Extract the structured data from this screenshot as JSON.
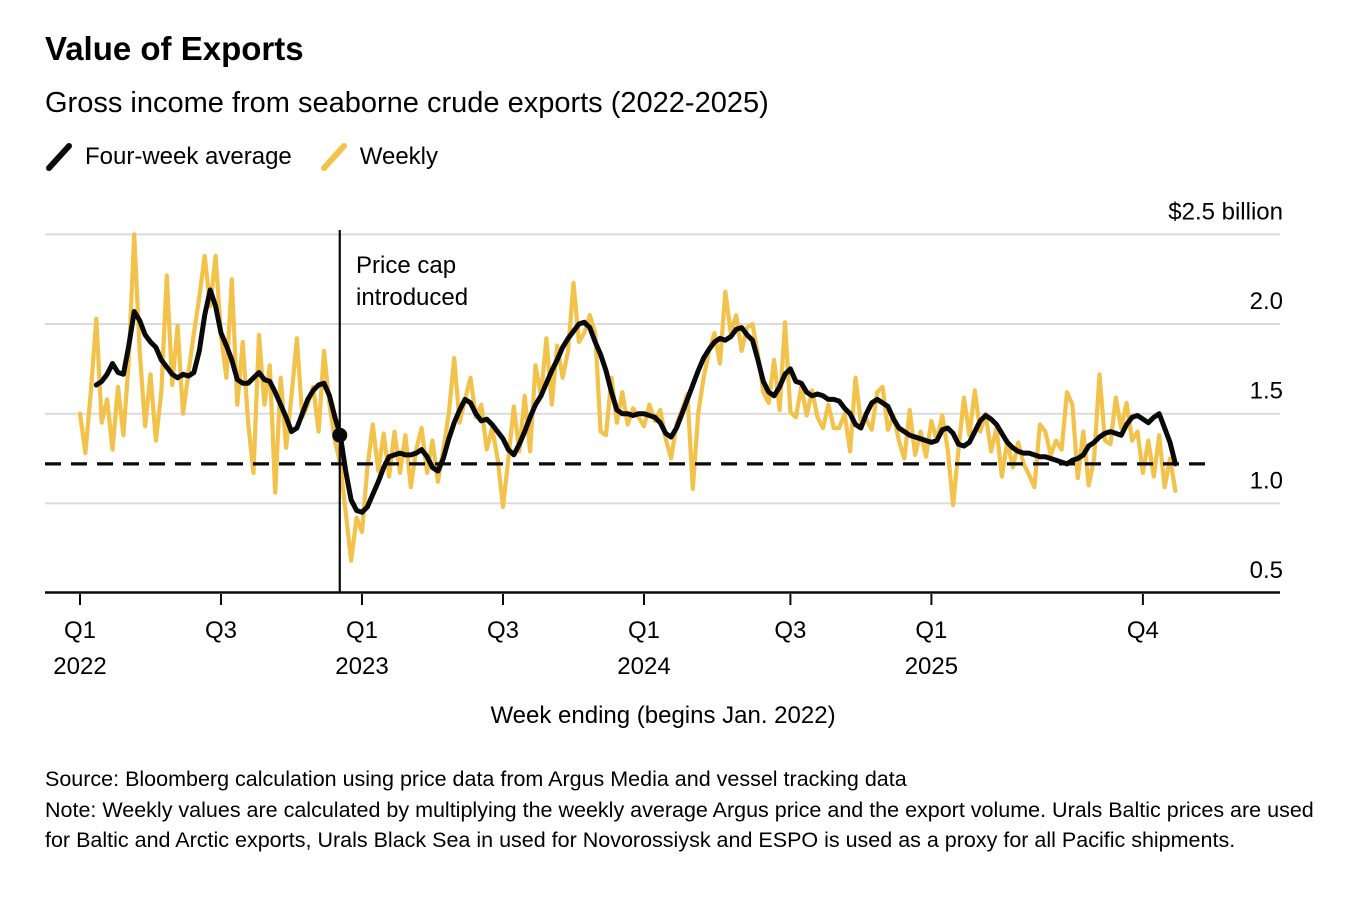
{
  "header": {
    "title": "Value of Exports",
    "subtitle": "Gross income from seaborne crude exports (2022-2025)"
  },
  "legend": [
    {
      "label": "Four-week average",
      "color": "#0a0a0a"
    },
    {
      "label": "Weekly",
      "color": "#f2c24a"
    }
  ],
  "annotation": {
    "price_cap_label": "Price cap\nintroduced"
  },
  "footer": {
    "source": "Source: Bloomberg calculation using price data from Argus Media and vessel tracking data",
    "note": "Note: Weekly values are calculated by multiplying the weekly average Argus price and the export volume. Urals Baltic prices are used for Baltic and Arctic exports, Urals Black Sea in used for Novorossiysk and ESPO is used as a proxy for all Pacific shipments."
  },
  "chart_data": {
    "type": "line",
    "title": "Value of Exports",
    "subtitle": "Gross income from seaborne crude exports (2022-2025)",
    "xlabel": "Week ending (begins Jan. 2022)",
    "ylabel": "$ billion",
    "ylim": [
      0.5,
      2.5
    ],
    "grid": "horizontal",
    "legend_position": "top-left",
    "colors": {
      "weekly": "#f2c24a",
      "four_week_average": "#0a0a0a",
      "gridline": "#dbdbdb"
    },
    "y_ticks": [
      {
        "label": "$2.5 billion",
        "value": 2.5
      },
      {
        "label": "2.0",
        "value": 2.0
      },
      {
        "label": "1.5",
        "value": 1.5
      },
      {
        "label": "1.0",
        "value": 1.0
      },
      {
        "label": "0.5",
        "value": 0.5
      }
    ],
    "x_ticks": [
      {
        "label": "Q1",
        "year": "2022",
        "week": 0
      },
      {
        "label": "Q3",
        "year": "",
        "week": 26
      },
      {
        "label": "Q1",
        "year": "2023",
        "week": 52
      },
      {
        "label": "Q3",
        "year": "",
        "week": 78
      },
      {
        "label": "Q1",
        "year": "2024",
        "week": 104
      },
      {
        "label": "Q3",
        "year": "",
        "week": 131
      },
      {
        "label": "Q1",
        "year": "2025",
        "week": 157
      },
      {
        "label": "Q4",
        "year": "",
        "week": 196
      }
    ],
    "dashed_baseline_value": 1.22,
    "price_cap": {
      "week": 47.9,
      "marker_value": 1.38,
      "label": "Price cap introduced"
    },
    "x_unit": "week index from first week of Jan. 2022",
    "series": [
      {
        "name": "Weekly",
        "color": "#f2c24a",
        "values": [
          1.5,
          1.28,
          1.62,
          2.03,
          1.45,
          1.58,
          1.3,
          1.65,
          1.38,
          1.8,
          2.5,
          1.85,
          1.43,
          1.72,
          1.35,
          1.62,
          2.27,
          1.66,
          1.99,
          1.5,
          1.73,
          1.95,
          2.15,
          2.38,
          2.1,
          2.38,
          1.94,
          1.7,
          2.25,
          1.55,
          1.9,
          1.45,
          1.17,
          1.94,
          1.55,
          1.77,
          1.06,
          1.7,
          1.31,
          1.6,
          1.92,
          1.48,
          1.55,
          1.65,
          1.4,
          1.85,
          1.55,
          1.35,
          1.22,
          0.95,
          0.68,
          0.92,
          0.84,
          1.2,
          1.44,
          1.18,
          1.39,
          1.15,
          1.4,
          1.17,
          1.38,
          1.09,
          1.3,
          1.42,
          1.17,
          1.35,
          1.12,
          1.3,
          1.5,
          1.81,
          1.45,
          1.58,
          1.7,
          1.48,
          1.55,
          1.3,
          1.42,
          1.25,
          0.98,
          1.25,
          1.54,
          1.29,
          1.6,
          1.29,
          1.77,
          1.6,
          1.92,
          1.55,
          1.88,
          1.7,
          1.85,
          2.23,
          1.9,
          1.95,
          2.05,
          1.95,
          1.4,
          1.38,
          1.7,
          1.45,
          1.62,
          1.44,
          1.53,
          1.48,
          1.43,
          1.55,
          1.46,
          1.52,
          1.36,
          1.25,
          1.44,
          1.52,
          1.61,
          1.08,
          1.5,
          1.7,
          1.85,
          1.95,
          1.78,
          2.18,
          1.95,
          2.05,
          1.85,
          1.98,
          2.0,
          1.83,
          1.62,
          1.56,
          1.8,
          1.52,
          2.01,
          1.51,
          1.48,
          1.65,
          1.49,
          1.63,
          1.48,
          1.42,
          1.55,
          1.42,
          1.42,
          1.5,
          1.29,
          1.7,
          1.45,
          1.47,
          1.41,
          1.62,
          1.65,
          1.41,
          1.49,
          1.35,
          1.25,
          1.52,
          1.27,
          1.4,
          1.26,
          1.46,
          1.35,
          1.49,
          1.3,
          0.99,
          1.3,
          1.59,
          1.38,
          1.63,
          1.4,
          1.5,
          1.29,
          1.42,
          1.15,
          1.35,
          1.2,
          1.34,
          1.22,
          1.16,
          1.09,
          1.44,
          1.4,
          1.27,
          1.35,
          1.3,
          1.62,
          1.55,
          1.14,
          1.4,
          1.1,
          1.25,
          1.72,
          1.35,
          1.33,
          1.59,
          1.42,
          1.56,
          1.35,
          1.4,
          1.17,
          1.35,
          1.15,
          1.38,
          1.09,
          1.25,
          1.07
        ]
      },
      {
        "name": "Four-week average",
        "color": "#0a0a0a",
        "values": [
          null,
          null,
          null,
          1.66,
          1.68,
          1.72,
          1.78,
          1.73,
          1.72,
          1.88,
          2.07,
          2.02,
          1.94,
          1.9,
          1.87,
          1.8,
          1.76,
          1.72,
          1.7,
          1.72,
          1.71,
          1.73,
          1.85,
          2.05,
          2.19,
          2.1,
          1.95,
          1.88,
          1.8,
          1.69,
          1.67,
          1.67,
          1.7,
          1.73,
          1.69,
          1.68,
          1.62,
          1.55,
          1.48,
          1.4,
          1.42,
          1.5,
          1.58,
          1.63,
          1.66,
          1.67,
          1.6,
          1.48,
          1.38,
          1.18,
          1.02,
          0.96,
          0.95,
          0.98,
          1.05,
          1.12,
          1.2,
          1.26,
          1.27,
          1.28,
          1.27,
          1.27,
          1.28,
          1.3,
          1.26,
          1.2,
          1.18,
          1.25,
          1.36,
          1.45,
          1.52,
          1.58,
          1.56,
          1.5,
          1.46,
          1.47,
          1.44,
          1.4,
          1.36,
          1.3,
          1.27,
          1.33,
          1.4,
          1.48,
          1.55,
          1.6,
          1.67,
          1.74,
          1.8,
          1.87,
          1.92,
          1.96,
          2.0,
          2.01,
          1.98,
          1.9,
          1.83,
          1.74,
          1.62,
          1.52,
          1.5,
          1.5,
          1.49,
          1.5,
          1.5,
          1.49,
          1.48,
          1.45,
          1.39,
          1.37,
          1.42,
          1.5,
          1.58,
          1.66,
          1.74,
          1.81,
          1.86,
          1.9,
          1.92,
          1.91,
          1.93,
          1.97,
          1.98,
          1.94,
          1.91,
          1.8,
          1.68,
          1.62,
          1.6,
          1.65,
          1.72,
          1.75,
          1.68,
          1.67,
          1.62,
          1.6,
          1.61,
          1.6,
          1.58,
          1.58,
          1.57,
          1.53,
          1.5,
          1.44,
          1.42,
          1.5,
          1.56,
          1.58,
          1.56,
          1.54,
          1.47,
          1.42,
          1.4,
          1.38,
          1.37,
          1.36,
          1.35,
          1.34,
          1.35,
          1.41,
          1.42,
          1.39,
          1.33,
          1.32,
          1.34,
          1.4,
          1.46,
          1.49,
          1.47,
          1.44,
          1.39,
          1.34,
          1.31,
          1.29,
          1.28,
          1.28,
          1.27,
          1.26,
          1.26,
          1.25,
          1.24,
          1.23,
          1.22,
          1.24,
          1.25,
          1.27,
          1.32,
          1.34,
          1.37,
          1.39,
          1.4,
          1.39,
          1.38,
          1.44,
          1.48,
          1.49,
          1.47,
          1.45,
          1.48,
          1.5,
          1.42,
          1.34,
          1.22
        ]
      }
    ]
  }
}
